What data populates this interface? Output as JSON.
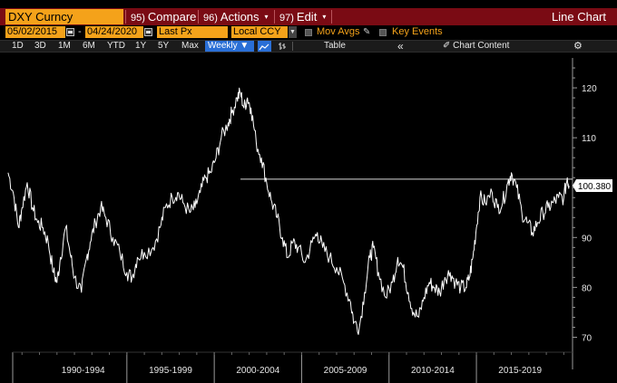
{
  "command_bar": {
    "ticker": "DXY Curncy",
    "menus": [
      {
        "num": "95)",
        "label": "Compare",
        "caret": "▾"
      },
      {
        "num": "96)",
        "label": "Actions",
        "caret": "▾"
      },
      {
        "num": "97)",
        "label": "Edit",
        "caret": "▾"
      }
    ],
    "chart_title": "Line Chart"
  },
  "fields": {
    "start_date": "05/02/2015",
    "date_separator": "-",
    "end_date": "04/24/2020",
    "price_field": "Last Px",
    "currency": "Local CCY",
    "mov_avgs": "Mov Avgs",
    "key_events": "Key Events"
  },
  "toolbar": {
    "periods": [
      "1D",
      "3D",
      "1M",
      "6M",
      "YTD",
      "1Y",
      "5Y",
      "Max"
    ],
    "frequency": "Weekly ▼",
    "table": "Table",
    "collapse": "«",
    "chart_content": "Chart Content"
  },
  "colors": {
    "command_bar": "#7a0b14",
    "field_orange": "#f4a21a",
    "selected_blue": "#2a6fd6",
    "series": "#ffffff",
    "axis": "#9a9a9a"
  },
  "chart_data": {
    "type": "line",
    "title": "",
    "xlabel": "",
    "ylabel": "",
    "ylim": [
      67,
      126
    ],
    "yticks": [
      70,
      80,
      90,
      100,
      110,
      120
    ],
    "x_categories": [
      "1990-1994",
      "1995-1999",
      "2000-2004",
      "2005-2009",
      "2010-2014",
      "2015-2019"
    ],
    "last_value_label": "100.380",
    "reference_level": 101.7,
    "series": [
      {
        "x": [
          1988.2,
          1988.5,
          1988.8,
          1989.0,
          1989.3,
          1989.6,
          1989.9,
          1990.2,
          1990.5,
          1990.8,
          1991.0,
          1991.2,
          1991.5,
          1991.8,
          1992.0,
          1992.4,
          1992.7,
          1992.9,
          1993.2,
          1993.5,
          1993.8,
          1994.2,
          1994.6,
          1995.0,
          1995.3,
          1995.6,
          1996.0,
          1996.5,
          1996.9,
          1997.2,
          1997.6,
          1997.9,
          1998.2,
          1998.6,
          1998.9,
          1999.2,
          1999.5,
          1999.8,
          2000.1,
          2000.4,
          2000.8,
          2001.0,
          2001.3,
          2001.5,
          2001.7,
          2001.9,
          2002.1,
          2002.4,
          2002.7,
          2003.0,
          2003.3,
          2003.6,
          2003.9,
          2004.2,
          2004.5,
          2004.8,
          2005.2,
          2005.6,
          2005.9,
          2006.2,
          2006.6,
          2007.0,
          2007.4,
          2007.8,
          2008.0,
          2008.3,
          2008.6,
          2008.9,
          2009.1,
          2009.4,
          2009.8,
          2010.2,
          2010.5,
          2010.8,
          2011.1,
          2011.4,
          2011.7,
          2012.0,
          2012.3,
          2012.6,
          2012.9,
          2013.2,
          2013.5,
          2013.8,
          2014.1,
          2014.4,
          2014.6,
          2014.8,
          2015.0,
          2015.2,
          2015.5,
          2015.9,
          2016.2,
          2016.5,
          2016.8,
          2017.0,
          2017.3,
          2017.6,
          2017.9,
          2018.2,
          2018.5,
          2018.8,
          2019.1,
          2019.4,
          2019.7,
          2020.0,
          2020.2,
          2020.3
        ],
        "y": [
          103,
          99,
          92,
          96,
          101,
          96,
          93,
          92,
          89,
          83,
          81,
          86,
          92,
          86,
          82,
          79,
          86,
          89,
          93,
          96,
          94,
          90,
          87,
          83,
          82,
          86,
          87,
          88,
          92,
          96,
          98,
          99,
          97,
          95,
          96,
          99,
          102,
          103,
          106,
          110,
          113,
          115,
          118,
          119,
          116,
          118,
          116,
          109,
          106,
          101,
          97,
          94,
          90,
          86,
          89,
          88,
          85,
          89,
          91,
          88,
          86,
          84,
          81,
          77,
          73,
          72,
          79,
          86,
          88,
          83,
          78,
          81,
          86,
          84,
          79,
          75,
          74,
          78,
          81,
          80,
          79,
          82,
          83,
          81,
          80,
          80,
          82,
          86,
          92,
          98,
          97,
          99,
          96,
          97,
          101,
          103,
          100,
          95,
          93,
          91,
          93,
          95,
          96,
          97,
          98,
          98,
          102,
          100.4
        ]
      }
    ]
  }
}
